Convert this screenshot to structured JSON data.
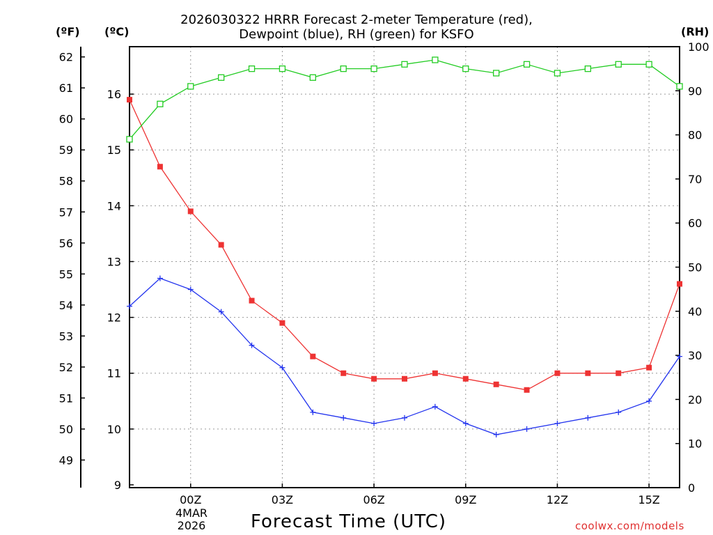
{
  "chart_data": {
    "type": "line",
    "title_lines": [
      "2026030322 HRRR Forecast 2-meter Temperature (red),",
      "Dewpoint (blue), RH (green) for KSFO"
    ],
    "units": {
      "fahrenheit": "(ºF)",
      "celsius": "(ºC)",
      "rh": "(RH)"
    },
    "xlabel": "Forecast Time (UTC)",
    "date_labels": [
      "4MAR",
      "2026"
    ],
    "watermark": "coolwx.com/models",
    "x_range_hours": [
      -2,
      16
    ],
    "x_ticks": [
      {
        "hour": 0,
        "label": "00Z"
      },
      {
        "hour": 3,
        "label": "03Z"
      },
      {
        "hour": 6,
        "label": "06Z"
      },
      {
        "hour": 9,
        "label": "09Z"
      },
      {
        "hour": 12,
        "label": "12Z"
      },
      {
        "hour": 15,
        "label": "15Z"
      }
    ],
    "x_gridlines": [
      0,
      3,
      6,
      9,
      12,
      15
    ],
    "celsius_axis": {
      "range": [
        8.95,
        16.85
      ],
      "ticks": [
        9,
        10,
        11,
        12,
        13,
        14,
        15,
        16
      ],
      "gridlines": [
        10,
        11,
        12,
        13,
        14,
        15,
        16
      ]
    },
    "fahrenheit_axis": {
      "ticks": [
        49,
        50,
        51,
        52,
        53,
        54,
        55,
        56,
        57,
        58,
        59,
        60,
        61,
        62
      ]
    },
    "rh_axis": {
      "range": [
        0,
        100
      ],
      "ticks": [
        0,
        10,
        20,
        30,
        40,
        50,
        60,
        70,
        80,
        90,
        100
      ]
    },
    "x": [
      -2,
      -1,
      0,
      1,
      2,
      3,
      4,
      5,
      6,
      7,
      8,
      9,
      10,
      11,
      12,
      13,
      14,
      15,
      16
    ],
    "series": [
      {
        "name": "Temperature",
        "axis": "celsius",
        "color": "#ee3333",
        "marker": "filled-square",
        "values": [
          15.9,
          14.7,
          13.9,
          13.3,
          12.3,
          11.9,
          11.3,
          11.0,
          10.9,
          10.9,
          11.0,
          10.9,
          10.8,
          10.7,
          11.0,
          11.0,
          11.0,
          11.1,
          12.6
        ]
      },
      {
        "name": "Dewpoint",
        "axis": "celsius",
        "color": "#2233ee",
        "marker": "plus",
        "values": [
          12.2,
          12.7,
          12.5,
          12.1,
          11.5,
          11.1,
          10.3,
          10.2,
          10.1,
          10.2,
          10.4,
          10.1,
          9.9,
          10.0,
          10.1,
          10.2,
          10.3,
          10.5,
          11.3
        ]
      },
      {
        "name": "RH",
        "axis": "rh",
        "color": "#22cc22",
        "marker": "open-square",
        "values": [
          79,
          87,
          91,
          93,
          95,
          95,
          93,
          95,
          95,
          96,
          97,
          95,
          94,
          96,
          94,
          95,
          96,
          96,
          91
        ]
      }
    ]
  }
}
